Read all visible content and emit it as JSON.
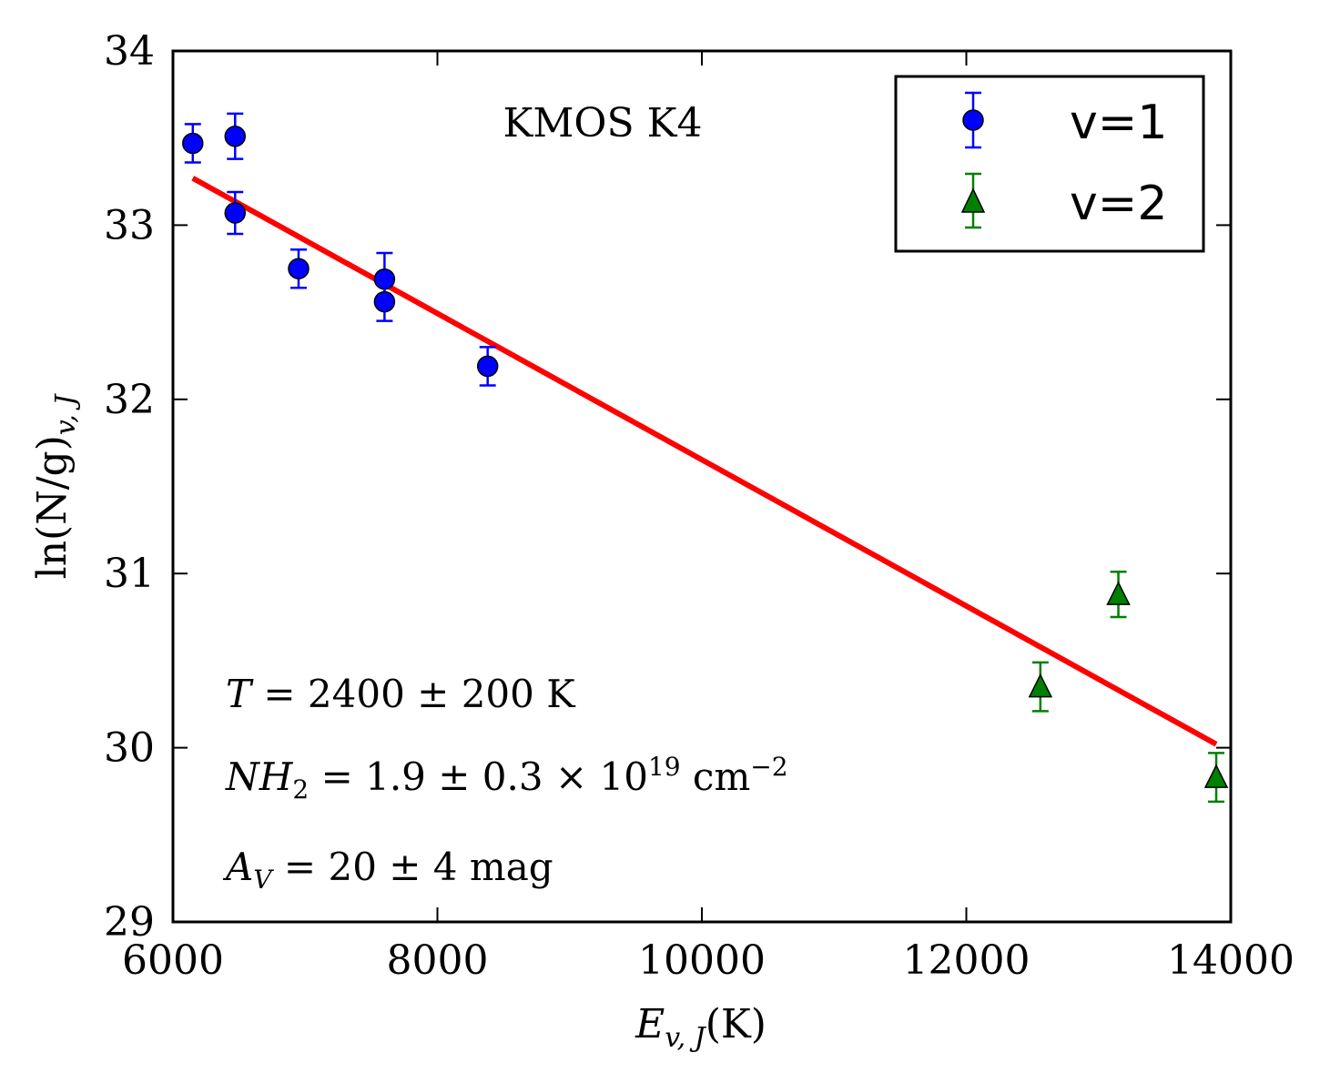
{
  "chart_data": {
    "type": "scatter",
    "title": "KMOS K4",
    "xlabel_main": "E",
    "xlabel_sub": "v, J",
    "xlabel_unit": "(K)",
    "ylabel_main": "ln(N/g)",
    "ylabel_sub": "v, J",
    "xlim": [
      6000,
      14000
    ],
    "ylim": [
      29,
      34
    ],
    "xticks": [
      6000,
      8000,
      10000,
      12000,
      14000
    ],
    "yticks": [
      29,
      30,
      31,
      32,
      33,
      34
    ],
    "xtick_labels": [
      "6000",
      "8000",
      "10000",
      "12000",
      "14000"
    ],
    "ytick_labels": [
      "29",
      "30",
      "31",
      "32",
      "33",
      "34"
    ],
    "legend_position": "top-right",
    "series": [
      {
        "name": "v=1",
        "marker": "circle",
        "color": "#0000ff",
        "edge_color": "#000000",
        "errorbar_color": "#0000ff",
        "x": [
          6150,
          6470,
          6470,
          6950,
          7600,
          7600,
          8380
        ],
        "y": [
          33.47,
          33.51,
          33.07,
          32.75,
          32.69,
          32.56,
          32.19
        ],
        "yerr": [
          0.11,
          0.13,
          0.12,
          0.11,
          0.15,
          0.11,
          0.11
        ]
      },
      {
        "name": "v=2",
        "marker": "triangle",
        "color": "#008000",
        "edge_color": "#000000",
        "errorbar_color": "#008000",
        "x": [
          12560,
          13150,
          13890
        ],
        "y": [
          30.35,
          30.88,
          29.83
        ],
        "yerr": [
          0.14,
          0.13,
          0.14
        ]
      }
    ],
    "fit_line": {
      "color": "#ff0000",
      "x": [
        6150,
        13890
      ],
      "y": [
        33.27,
        30.02
      ]
    },
    "annotations": {
      "temperature": {
        "var": "T",
        "text": " = 2400 ± 200 K"
      },
      "column_density": {
        "var": "NH",
        "sub": "2",
        "text": " = 1.9 ± 0.3 × 10",
        "sup": "19",
        "unit": " cm",
        "unit_sup": "−2"
      },
      "extinction": {
        "var": "A",
        "sub": "V",
        "text": " = 20 ± 4 mag"
      }
    }
  }
}
